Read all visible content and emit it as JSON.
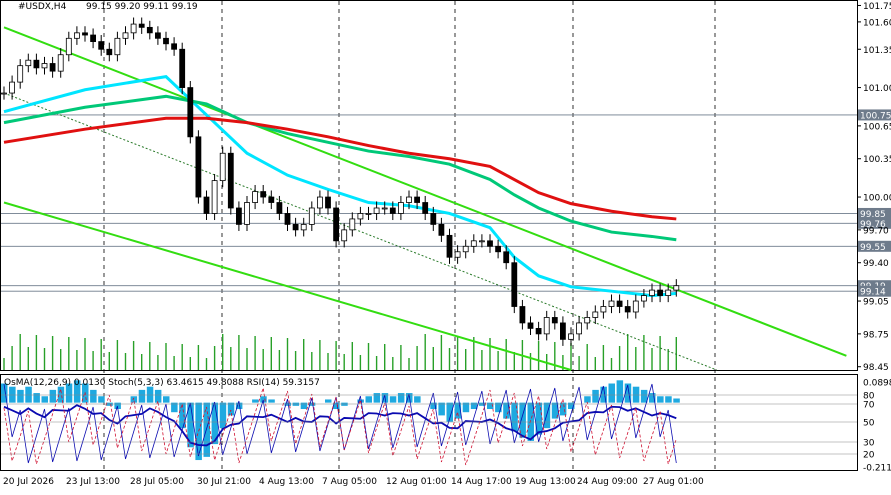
{
  "chart_data": {
    "type": "line",
    "symbol": "#USDX,H4",
    "ohlc_header": "99.15 99.20 99.11 99.19",
    "ylim": [
      98.42,
      101.8
    ],
    "price_axis_ticks": [
      101.75,
      101.6,
      101.35,
      101.0,
      100.65,
      100.35,
      100.0,
      99.7,
      99.4,
      99.05,
      98.75,
      98.45
    ],
    "price_levels": [
      {
        "label": "100.75",
        "value": 100.75,
        "color": "#6e7b8b"
      },
      {
        "label": "99.85",
        "value": 99.85,
        "color": "#6e7b8b"
      },
      {
        "label": "99.76",
        "value": 99.76,
        "color": "#6e7b8b"
      },
      {
        "label": "99.55",
        "value": 99.55,
        "color": "#6e7b8b"
      },
      {
        "label": "99.19",
        "value": 99.19,
        "color": "#6e7b8b"
      },
      {
        "label": "99.14",
        "value": 99.14,
        "color": "#6e7b8b"
      }
    ],
    "x_labels": [
      "20 Jul 2026",
      "23 Jul 13:00",
      "28 Jul 05:00",
      "30 Jul 21:00",
      "4 Aug 13:00",
      "7 Aug 05:00",
      "12 Aug 01:00",
      "14 Aug 17:00",
      "19 Aug 13:00",
      "24 Aug 09:00",
      "27 Aug 01:00"
    ],
    "price_series": [
      [
        0,
        100.95
      ],
      [
        1,
        101.05
      ],
      [
        2,
        101.2
      ],
      [
        3,
        101.25
      ],
      [
        4,
        101.18
      ],
      [
        5,
        101.22
      ],
      [
        6,
        101.15
      ],
      [
        7,
        101.3
      ],
      [
        8,
        101.45
      ],
      [
        9,
        101.5
      ],
      [
        10,
        101.48
      ],
      [
        11,
        101.42
      ],
      [
        12,
        101.35
      ],
      [
        13,
        101.3
      ],
      [
        14,
        101.45
      ],
      [
        15,
        101.5
      ],
      [
        16,
        101.58
      ],
      [
        17,
        101.55
      ],
      [
        18,
        101.5
      ],
      [
        19,
        101.45
      ],
      [
        20,
        101.4
      ],
      [
        21,
        101.35
      ],
      [
        22,
        101.0
      ],
      [
        23,
        100.55
      ],
      [
        24,
        100.0
      ],
      [
        25,
        99.85
      ],
      [
        26,
        100.15
      ],
      [
        27,
        100.4
      ],
      [
        28,
        99.9
      ],
      [
        29,
        99.75
      ],
      [
        30,
        99.95
      ],
      [
        31,
        100.05
      ],
      [
        32,
        100.0
      ],
      [
        33,
        99.95
      ],
      [
        34,
        99.85
      ],
      [
        35,
        99.75
      ],
      [
        36,
        99.7
      ],
      [
        37,
        99.75
      ],
      [
        38,
        99.9
      ],
      [
        39,
        100.0
      ],
      [
        40,
        99.9
      ],
      [
        41,
        99.6
      ],
      [
        42,
        99.7
      ],
      [
        43,
        99.8
      ],
      [
        44,
        99.85
      ],
      [
        45,
        99.85
      ],
      [
        46,
        99.9
      ],
      [
        47,
        99.9
      ],
      [
        48,
        99.85
      ],
      [
        49,
        99.95
      ],
      [
        50,
        100.0
      ],
      [
        51,
        99.95
      ],
      [
        52,
        99.85
      ],
      [
        53,
        99.75
      ],
      [
        54,
        99.65
      ],
      [
        55,
        99.45
      ],
      [
        56,
        99.5
      ],
      [
        57,
        99.55
      ],
      [
        58,
        99.6
      ],
      [
        59,
        99.6
      ],
      [
        60,
        99.55
      ],
      [
        61,
        99.5
      ],
      [
        62,
        99.4
      ],
      [
        63,
        99.0
      ],
      [
        64,
        98.85
      ],
      [
        65,
        98.8
      ],
      [
        66,
        98.75
      ],
      [
        67,
        98.9
      ],
      [
        68,
        98.85
      ],
      [
        69,
        98.7
      ],
      [
        70,
        98.75
      ],
      [
        71,
        98.85
      ],
      [
        72,
        98.9
      ],
      [
        73,
        98.95
      ],
      [
        74,
        99.0
      ],
      [
        75,
        99.05
      ],
      [
        76,
        99.0
      ],
      [
        77,
        98.95
      ],
      [
        78,
        99.05
      ],
      [
        79,
        99.1
      ],
      [
        80,
        99.15
      ],
      [
        81,
        99.1
      ],
      [
        82,
        99.15
      ],
      [
        83,
        99.19
      ]
    ],
    "ma_series": [
      {
        "color": "#00e5ff",
        "values": [
          [
            0,
            100.78
          ],
          [
            10,
            100.98
          ],
          [
            20,
            101.1
          ],
          [
            25,
            100.75
          ],
          [
            30,
            100.4
          ],
          [
            35,
            100.2
          ],
          [
            40,
            100.07
          ],
          [
            45,
            99.95
          ],
          [
            50,
            99.92
          ],
          [
            55,
            99.85
          ],
          [
            60,
            99.72
          ],
          [
            63,
            99.45
          ],
          [
            66,
            99.28
          ],
          [
            70,
            99.18
          ],
          [
            75,
            99.14
          ],
          [
            80,
            99.1
          ],
          [
            83,
            99.12
          ]
        ]
      },
      {
        "color": "#00c878",
        "values": [
          [
            0,
            100.68
          ],
          [
            10,
            100.82
          ],
          [
            20,
            100.92
          ],
          [
            25,
            100.85
          ],
          [
            30,
            100.68
          ],
          [
            35,
            100.58
          ],
          [
            40,
            100.5
          ],
          [
            45,
            100.42
          ],
          [
            50,
            100.37
          ],
          [
            55,
            100.3
          ],
          [
            60,
            100.16
          ],
          [
            63,
            100.02
          ],
          [
            66,
            99.9
          ],
          [
            70,
            99.78
          ],
          [
            75,
            99.68
          ],
          [
            80,
            99.64
          ],
          [
            83,
            99.61
          ]
        ]
      },
      {
        "color": "#e01010",
        "values": [
          [
            0,
            100.5
          ],
          [
            10,
            100.62
          ],
          [
            20,
            100.72
          ],
          [
            25,
            100.72
          ],
          [
            30,
            100.68
          ],
          [
            35,
            100.62
          ],
          [
            40,
            100.55
          ],
          [
            45,
            100.47
          ],
          [
            50,
            100.4
          ],
          [
            55,
            100.35
          ],
          [
            60,
            100.28
          ],
          [
            63,
            100.16
          ],
          [
            66,
            100.04
          ],
          [
            70,
            99.94
          ],
          [
            75,
            99.87
          ],
          [
            80,
            99.82
          ],
          [
            83,
            99.8
          ]
        ]
      }
    ],
    "channel_lines": [
      {
        "name": "upper",
        "color": "#33dd11",
        "from": [
          0,
          101.55
        ],
        "to": [
          104,
          98.55
        ]
      },
      {
        "name": "lower",
        "color": "#33dd11",
        "from": [
          0,
          99.95
        ],
        "to": [
          70,
          98.42
        ]
      }
    ],
    "oscillator": {
      "header": "OsMA(12,26,9) 0.0130  Stoch(5,3,3) 63.4615 49.8088  RSI(14) 59.3157",
      "axis_ticks": [
        "0.0898",
        "80",
        "70",
        "50",
        "30",
        "20",
        "-0.2112"
      ],
      "ylim": [
        -0.2112,
        0.0898
      ],
      "osma": [
        0.06,
        0.05,
        0.04,
        0.05,
        0.03,
        0.02,
        0.04,
        0.05,
        0.06,
        0.07,
        0.06,
        0.04,
        0.02,
        -0.01,
        -0.02,
        0.0,
        0.02,
        0.04,
        0.05,
        0.04,
        0.02,
        -0.03,
        -0.08,
        -0.14,
        -0.18,
        -0.17,
        -0.13,
        -0.08,
        -0.04,
        -0.02,
        0.0,
        0.01,
        0.02,
        0.01,
        0.0,
        -0.01,
        -0.01,
        -0.02,
        -0.01,
        0.0,
        0.01,
        -0.02,
        -0.01,
        0.0,
        0.01,
        0.02,
        0.03,
        0.03,
        0.02,
        0.03,
        0.03,
        0.02,
        0.0,
        -0.02,
        -0.04,
        -0.06,
        -0.05,
        -0.03,
        -0.02,
        -0.01,
        -0.02,
        -0.03,
        -0.05,
        -0.09,
        -0.11,
        -0.12,
        -0.1,
        -0.08,
        -0.05,
        -0.04,
        -0.02,
        0.0,
        0.02,
        0.04,
        0.05,
        0.06,
        0.07,
        0.06,
        0.05,
        0.04,
        0.03,
        0.02,
        0.02,
        0.013
      ]
    }
  }
}
